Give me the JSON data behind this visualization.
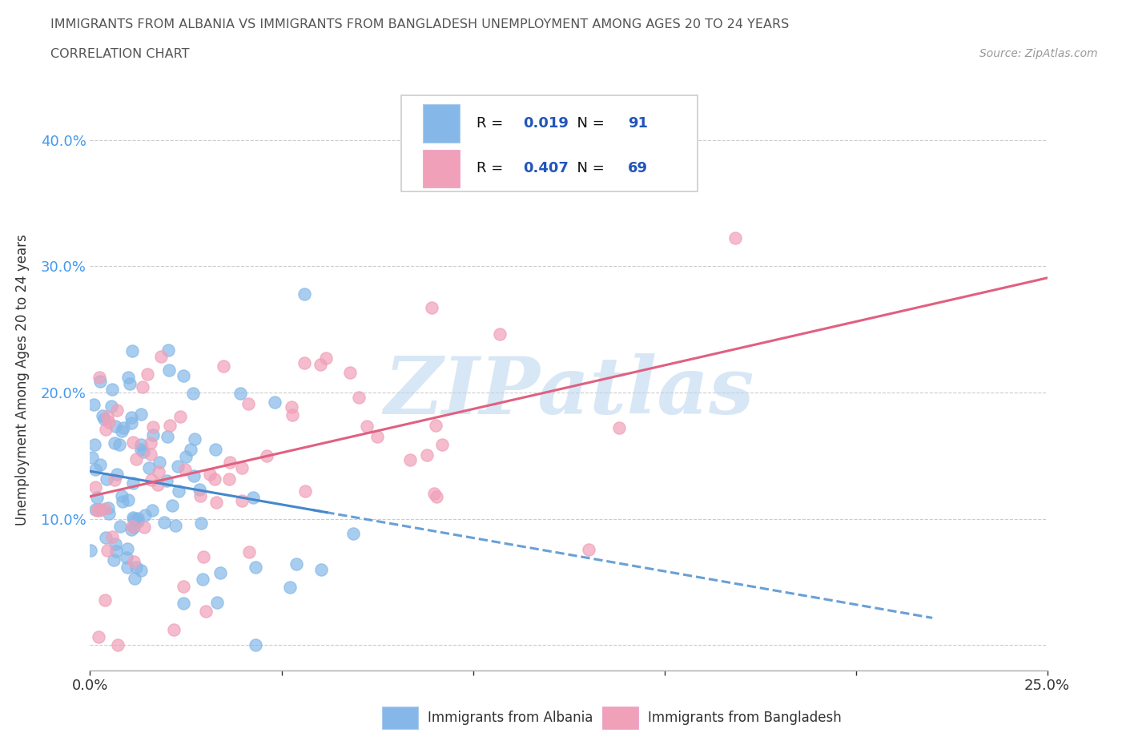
{
  "title_line1": "IMMIGRANTS FROM ALBANIA VS IMMIGRANTS FROM BANGLADESH UNEMPLOYMENT AMONG AGES 20 TO 24 YEARS",
  "title_line2": "CORRELATION CHART",
  "source_text": "Source: ZipAtlas.com",
  "ylabel": "Unemployment Among Ages 20 to 24 years",
  "xlim": [
    0,
    0.25
  ],
  "ylim": [
    -0.02,
    0.44
  ],
  "albania_color": "#85b8e8",
  "bangladesh_color": "#f0a0b8",
  "albania_R": "0.019",
  "albania_N": "91",
  "bangladesh_R": "0.407",
  "bangladesh_N": "69",
  "albania_line_color": "#4488cc",
  "bangladesh_line_color": "#e06080",
  "watermark": "ZIPatlas",
  "legend_label_albania": "Immigrants from Albania",
  "legend_label_bangladesh": "Immigrants from Bangladesh",
  "label_color_R": "#111111",
  "label_color_val": "#2255bb",
  "ytick_color": "#4499ee",
  "xtick_color": "#333333"
}
